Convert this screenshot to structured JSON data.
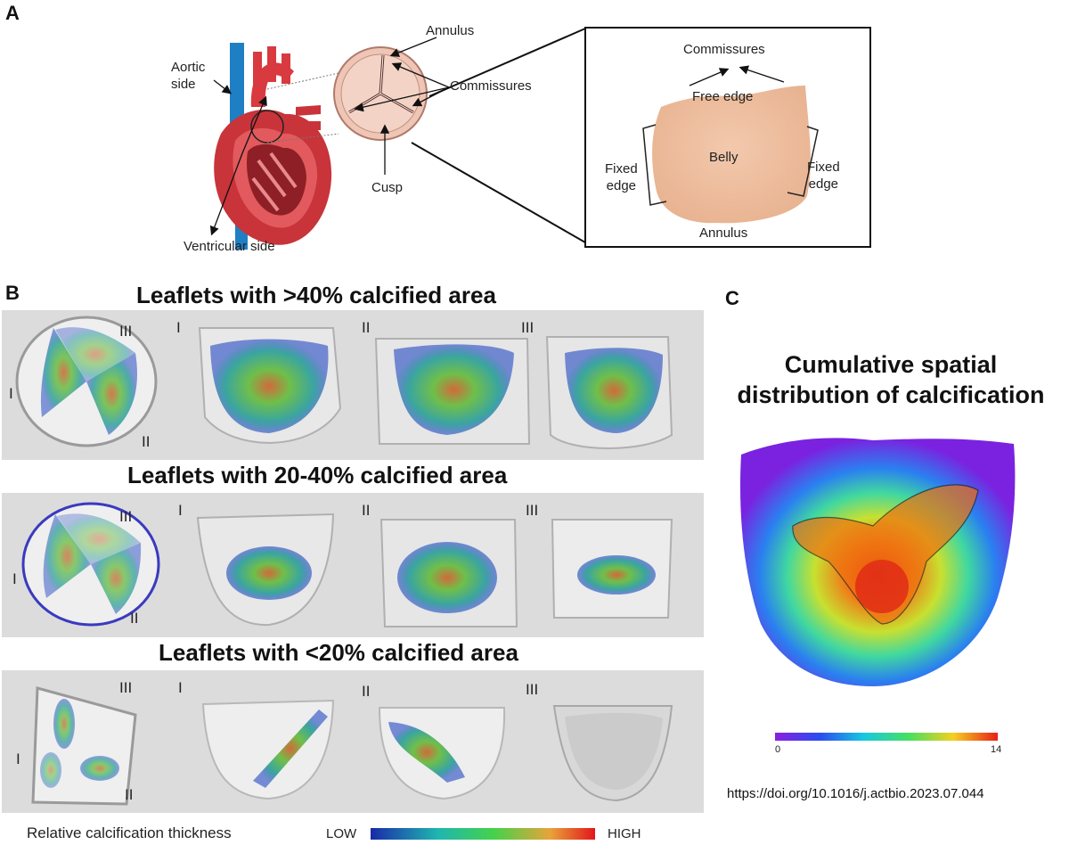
{
  "panel_a": {
    "letter": "A",
    "labels": {
      "aortic": "Aortic\nside",
      "ventricular": "Ventricular side",
      "annulus_top": "Annulus",
      "commissures_mid": "Commissures",
      "cusp": "Cusp",
      "commissures_box": "Commissures",
      "free_edge": "Free edge",
      "belly": "Belly",
      "fixed_edge_left": "Fixed\nedge",
      "fixed_edge_right": "Fixed\nedge",
      "annulus_box": "Annulus"
    }
  },
  "panel_b": {
    "letter": "B",
    "rows": [
      {
        "title": "Leaflets with >40% calcified area"
      },
      {
        "title": "Leaflets with 20-40% calcified area"
      },
      {
        "title": "Leaflets with <20% calcified area"
      }
    ],
    "roman": [
      "I",
      "II",
      "III"
    ],
    "legend": {
      "label": "Relative calcification thickness",
      "low": "LOW",
      "high": "HIGH"
    }
  },
  "panel_c": {
    "letter": "C",
    "title_line1": "Cumulative spatial",
    "title_line2": "distribution of calcification",
    "scale_min": "0",
    "scale_max": "14"
  },
  "doi": "https://doi.org/10.1016/j.actbio.2023.07.044",
  "colors": {
    "band": "#dcdcdc",
    "heart_red": "#c8343a",
    "vessel_blue": "#1f7fc4",
    "valve_pink": "#efc6b6",
    "leaflet_tissue": "#f1c7a9"
  }
}
